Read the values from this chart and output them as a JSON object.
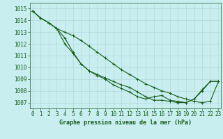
{
  "title": "Graphe pression niveau de la mer (hPa)",
  "background_color": "#c8eef0",
  "grid_color": "#b0d8dc",
  "line_color": "#1a5c1a",
  "x_ticks": [
    0,
    1,
    2,
    3,
    4,
    5,
    6,
    7,
    8,
    9,
    10,
    11,
    12,
    13,
    14,
    15,
    16,
    17,
    18,
    19,
    20,
    21,
    22,
    23
  ],
  "y_ticks": [
    1007,
    1008,
    1009,
    1010,
    1011,
    1012,
    1013,
    1014,
    1015
  ],
  "ylim": [
    1006.5,
    1015.5
  ],
  "xlim": [
    -0.3,
    23.3
  ],
  "series": [
    [
      1014.8,
      1014.2,
      1013.8,
      1013.3,
      1013.0,
      1012.7,
      1012.3,
      1011.8,
      1011.3,
      1010.8,
      1010.3,
      1009.8,
      1009.4,
      1009.0,
      1008.6,
      1008.3,
      1008.0,
      1007.8,
      1007.5,
      1007.3,
      1007.1,
      1007.0,
      1007.1,
      1008.8
    ],
    [
      1014.8,
      1014.2,
      1013.8,
      1013.3,
      1012.5,
      1011.3,
      1010.3,
      1009.7,
      1009.4,
      1009.1,
      1008.8,
      1008.5,
      1008.3,
      1007.9,
      1007.5,
      1007.2,
      1007.2,
      1007.1,
      1007.0,
      1007.0,
      1007.3,
      1008.0,
      1008.8,
      1008.8
    ],
    [
      1014.8,
      1014.2,
      1013.8,
      1013.3,
      1012.0,
      1011.2,
      1010.3,
      1009.7,
      1009.3,
      1009.0,
      1008.5,
      1008.2,
      1007.9,
      1007.5,
      1007.3,
      1007.5,
      1007.6,
      1007.2,
      1007.1,
      1007.0,
      1007.3,
      1008.1,
      1008.8,
      1008.8
    ]
  ],
  "marker": "+",
  "markersize": 3,
  "linewidth": 0.8,
  "tick_fontsize": 5.5,
  "label_fontsize": 6.0
}
